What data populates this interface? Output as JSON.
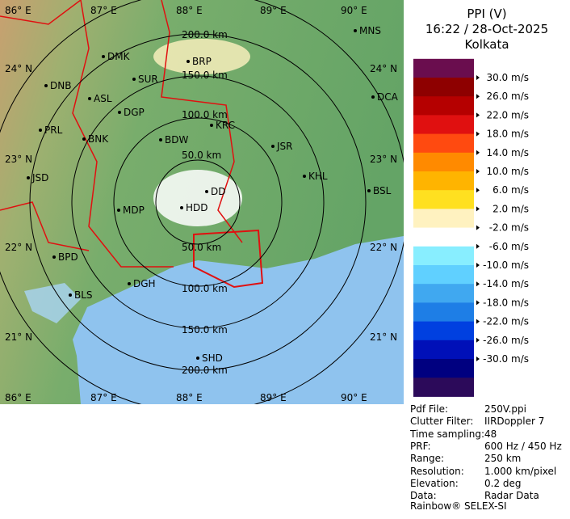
{
  "header": {
    "product": "PPI (V)",
    "time": "16:22 / 28-Oct-2025",
    "station": "Kolkata"
  },
  "legend": {
    "colors": [
      "#6a0d4e",
      "#8e0000",
      "#b50000",
      "#e01010",
      "#ff4a10",
      "#ff8a00",
      "#ffb400",
      "#ffe020",
      "#fff2c0",
      "#ffffff",
      "#88eeff",
      "#60d0ff",
      "#40a8f0",
      "#1e7ee6",
      "#0040e0",
      "#0010b8",
      "#000080",
      "#2c0a5a"
    ],
    "labels": [
      "30.0 m/s",
      "26.0 m/s",
      "22.0 m/s",
      "18.0 m/s",
      "14.0 m/s",
      "10.0 m/s",
      "6.0 m/s",
      "2.0 m/s",
      "-2.0 m/s",
      "-6.0 m/s",
      "-10.0 m/s",
      "-14.0 m/s",
      "-18.0 m/s",
      "-22.0 m/s",
      "-26.0 m/s",
      "-30.0 m/s"
    ]
  },
  "map": {
    "cities": [
      "MNS",
      "DMK",
      "BRP",
      "DNB",
      "SUR",
      "ASL",
      "DGP",
      "DCA",
      "KRC",
      "PRL",
      "BNK",
      "BDW",
      "JSR",
      "JSD",
      "KHL",
      "BSL",
      "DD",
      "MDP",
      "HDD",
      "BPD",
      "BLS",
      "DGH",
      "SHD"
    ],
    "longitudes": [
      "86° E",
      "87° E",
      "88° E",
      "89° E",
      "90° E"
    ],
    "latitudes": [
      "24° N",
      "23° N",
      "22° N",
      "21° N"
    ],
    "range_labels": [
      "200.0 km",
      "150.0 km",
      "100.0 km",
      "50.0 km",
      "50.0 km",
      "100.0 km",
      "150.0 km",
      "200.0 km"
    ]
  },
  "info": [
    [
      "Pdf File:",
      "250V.ppi"
    ],
    [
      "Clutter Filter:",
      "IIRDoppler 7"
    ],
    [
      "Time sampling:",
      "48"
    ],
    [
      "PRF:",
      "600 Hz / 450 Hz"
    ],
    [
      "Range:",
      "250 km"
    ],
    [
      "Resolution:",
      "1.000 km/pixel"
    ],
    [
      "Elevation:",
      "0.2 deg"
    ],
    [
      "Data:",
      "Radar Data"
    ]
  ],
  "footer": "Rainbow® SELEX-SI"
}
